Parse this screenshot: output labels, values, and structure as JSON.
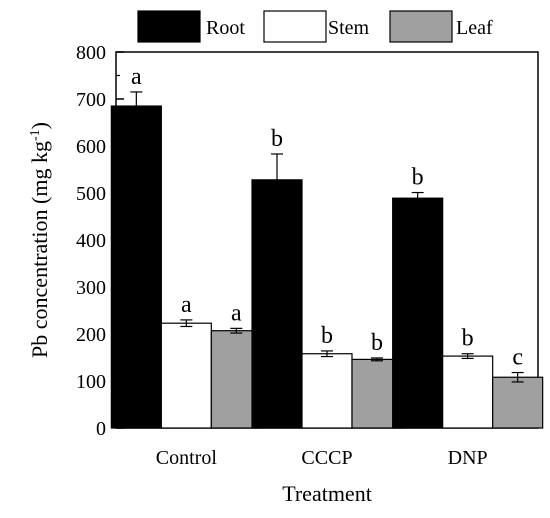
{
  "chart_data": {
    "type": "bar",
    "categories": [
      "Control",
      "CCCP",
      "DNP"
    ],
    "series": [
      {
        "name": "Root",
        "color": "#000000",
        "values": [
          685,
          528,
          489
        ],
        "errors": [
          30,
          55,
          12
        ],
        "letters": [
          "a",
          "b",
          "b"
        ]
      },
      {
        "name": "Stem",
        "color": "#ffffff",
        "values": [
          223,
          158,
          153
        ],
        "errors": [
          7,
          6,
          5
        ],
        "letters": [
          "a",
          "b",
          "b"
        ]
      },
      {
        "name": "Leaf",
        "color": "#a0a0a0",
        "values": [
          207,
          146,
          108
        ],
        "errors": [
          5,
          3,
          10
        ],
        "letters": [
          "a",
          "b",
          "c"
        ]
      }
    ],
    "xlabel": "Treatment",
    "ylabel_main": "Pb concentration (mg kg",
    "ylabel_sup": "-1",
    "ylabel_end": ")",
    "ylim": [
      0,
      800
    ],
    "yticks": [
      "0",
      "100",
      "200",
      "300",
      "400",
      "500",
      "600",
      "700",
      "800"
    ],
    "legend_position": "top",
    "grid": false
  }
}
